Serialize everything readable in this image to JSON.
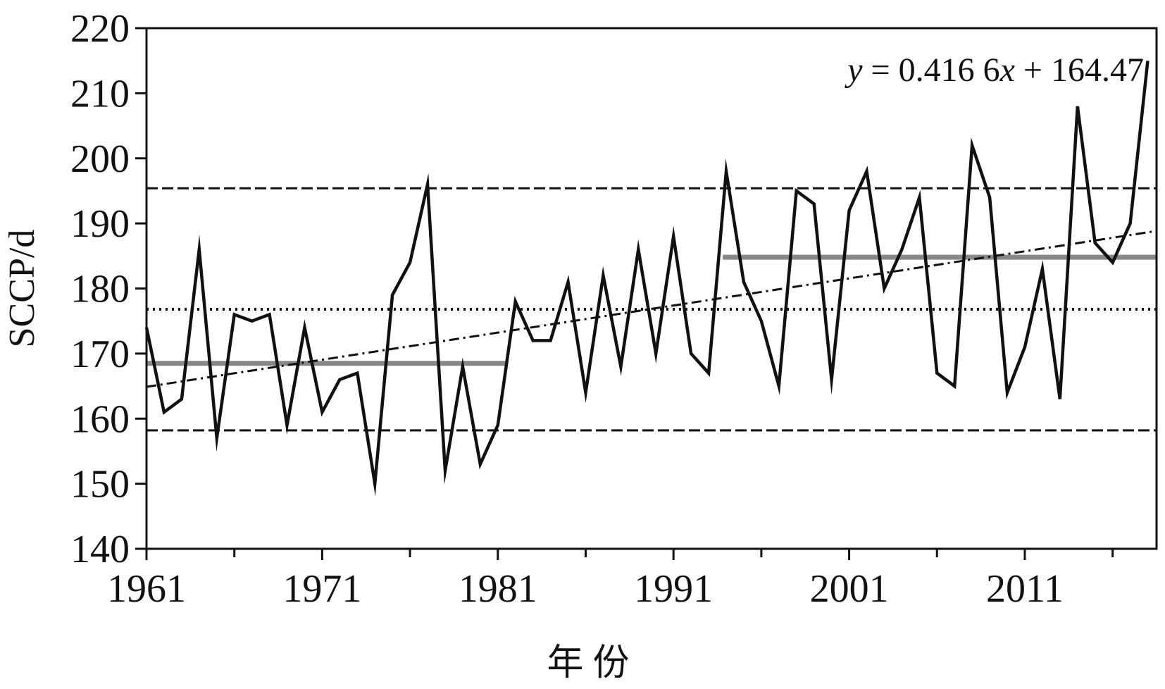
{
  "chart_data": {
    "type": "line",
    "xlabel": "年 份",
    "ylabel": "SCCP/d",
    "x_tick_labels": [
      "1961",
      "1971",
      "1981",
      "1991",
      "2001",
      "2011"
    ],
    "x_ticks": [
      1961,
      1971,
      1981,
      1991,
      2001,
      2011
    ],
    "y_ticks": [
      140,
      150,
      160,
      170,
      180,
      190,
      200,
      210,
      220
    ],
    "xlim": [
      1961,
      2018.5
    ],
    "ylim": [
      140,
      220
    ],
    "grid": false,
    "annotation": {
      "parts": [
        "y",
        " = 0.416 6",
        "x",
        " + 164.47"
      ]
    },
    "series": [
      {
        "style": "solid",
        "color": "#111111",
        "x": [
          1961,
          1962,
          1963,
          1964,
          1965,
          1966,
          1967,
          1968,
          1969,
          1970,
          1971,
          1972,
          1973,
          1974,
          1975,
          1976,
          1977,
          1978,
          1979,
          1980,
          1981,
          1982,
          1983,
          1984,
          1985,
          1986,
          1987,
          1988,
          1989,
          1990,
          1991,
          1992,
          1993,
          1994,
          1995,
          1996,
          1997,
          1998,
          1999,
          2000,
          2001,
          2002,
          2003,
          2004,
          2005,
          2006,
          2007,
          2008,
          2009,
          2010,
          2011,
          2012,
          2013,
          2014,
          2015,
          2016,
          2017,
          2018
        ],
        "values": [
          174,
          161,
          163,
          186,
          157,
          176,
          175,
          176,
          159,
          174,
          161,
          166,
          167,
          150,
          179,
          184,
          196,
          152,
          168,
          153,
          159,
          178,
          172,
          172,
          181,
          164,
          182,
          168,
          186,
          170,
          188,
          170,
          167,
          198,
          181,
          175,
          165,
          195,
          193,
          166,
          192,
          198,
          180,
          186,
          194,
          167,
          165,
          202,
          194,
          164,
          171,
          183,
          163,
          208,
          187,
          184,
          190,
          215
        ]
      },
      {
        "style": "trend",
        "color": "#111111",
        "slope": 0.4166,
        "intercept": 164.47,
        "x0": 1961
      }
    ],
    "reference_lines": [
      {
        "y": 195.4,
        "x_range": [
          1961,
          2018.5
        ],
        "style": "dashed",
        "color": "#111111"
      },
      {
        "y": 176.8,
        "x_range": [
          1961,
          2018.5
        ],
        "style": "dotted",
        "color": "#111111"
      },
      {
        "y": 158.2,
        "x_range": [
          1961,
          2018.5
        ],
        "style": "dashed",
        "color": "#111111"
      },
      {
        "y": 168.5,
        "x_range": [
          1961,
          1981.5
        ],
        "style": "solid-thick",
        "color": "#888888"
      },
      {
        "y": 184.8,
        "x_range": [
          1993.8,
          2018.5
        ],
        "style": "solid-thick",
        "color": "#888888"
      }
    ]
  }
}
